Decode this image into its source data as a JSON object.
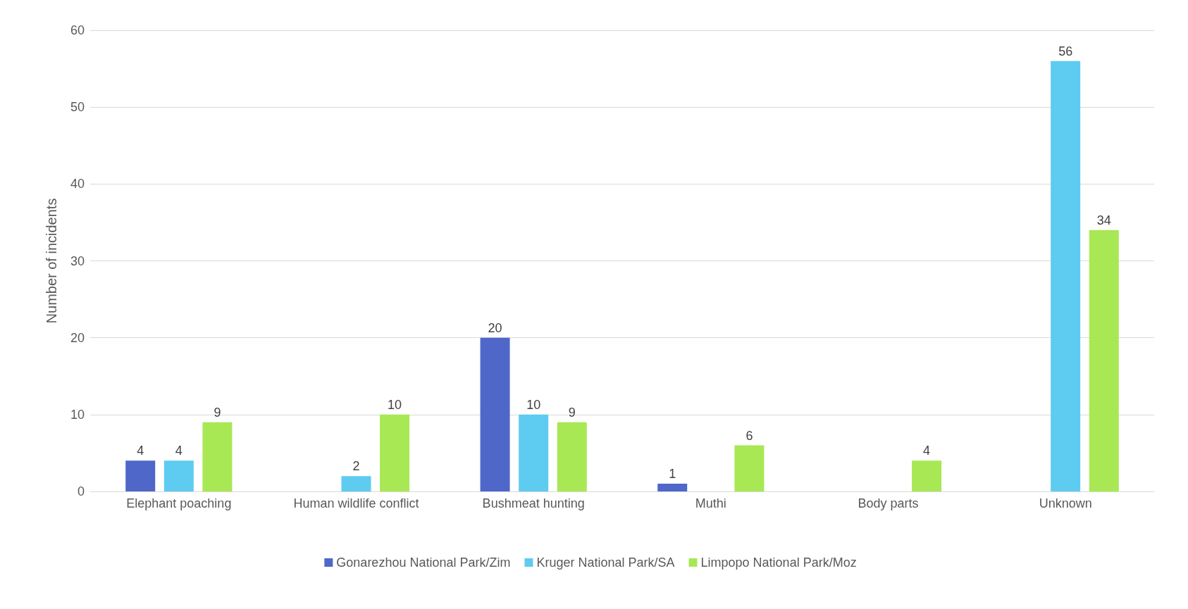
{
  "chart_data": {
    "type": "bar",
    "ylabel": "Number of incidents",
    "categories": [
      "Elephant poaching",
      "Human wildlife conflict",
      "Bushmeat hunting",
      "Muthi",
      "Body parts",
      "Unknown"
    ],
    "series": [
      {
        "name": "Gonarezhou National Park/Zim",
        "color": "#4f67c9",
        "values": [
          4,
          null,
          20,
          1,
          null,
          null
        ]
      },
      {
        "name": "Kruger National Park/SA",
        "color": "#5ecbf1",
        "values": [
          4,
          2,
          10,
          null,
          null,
          56
        ]
      },
      {
        "name": "Limpopo National Park/Moz",
        "color": "#a7e854",
        "values": [
          9,
          10,
          9,
          6,
          4,
          34
        ]
      }
    ],
    "ylim": [
      0,
      60
    ],
    "yticks": [
      0,
      10,
      20,
      30,
      40,
      50,
      60
    ],
    "grid": "y",
    "legend": "bottom",
    "data_labels": true
  }
}
